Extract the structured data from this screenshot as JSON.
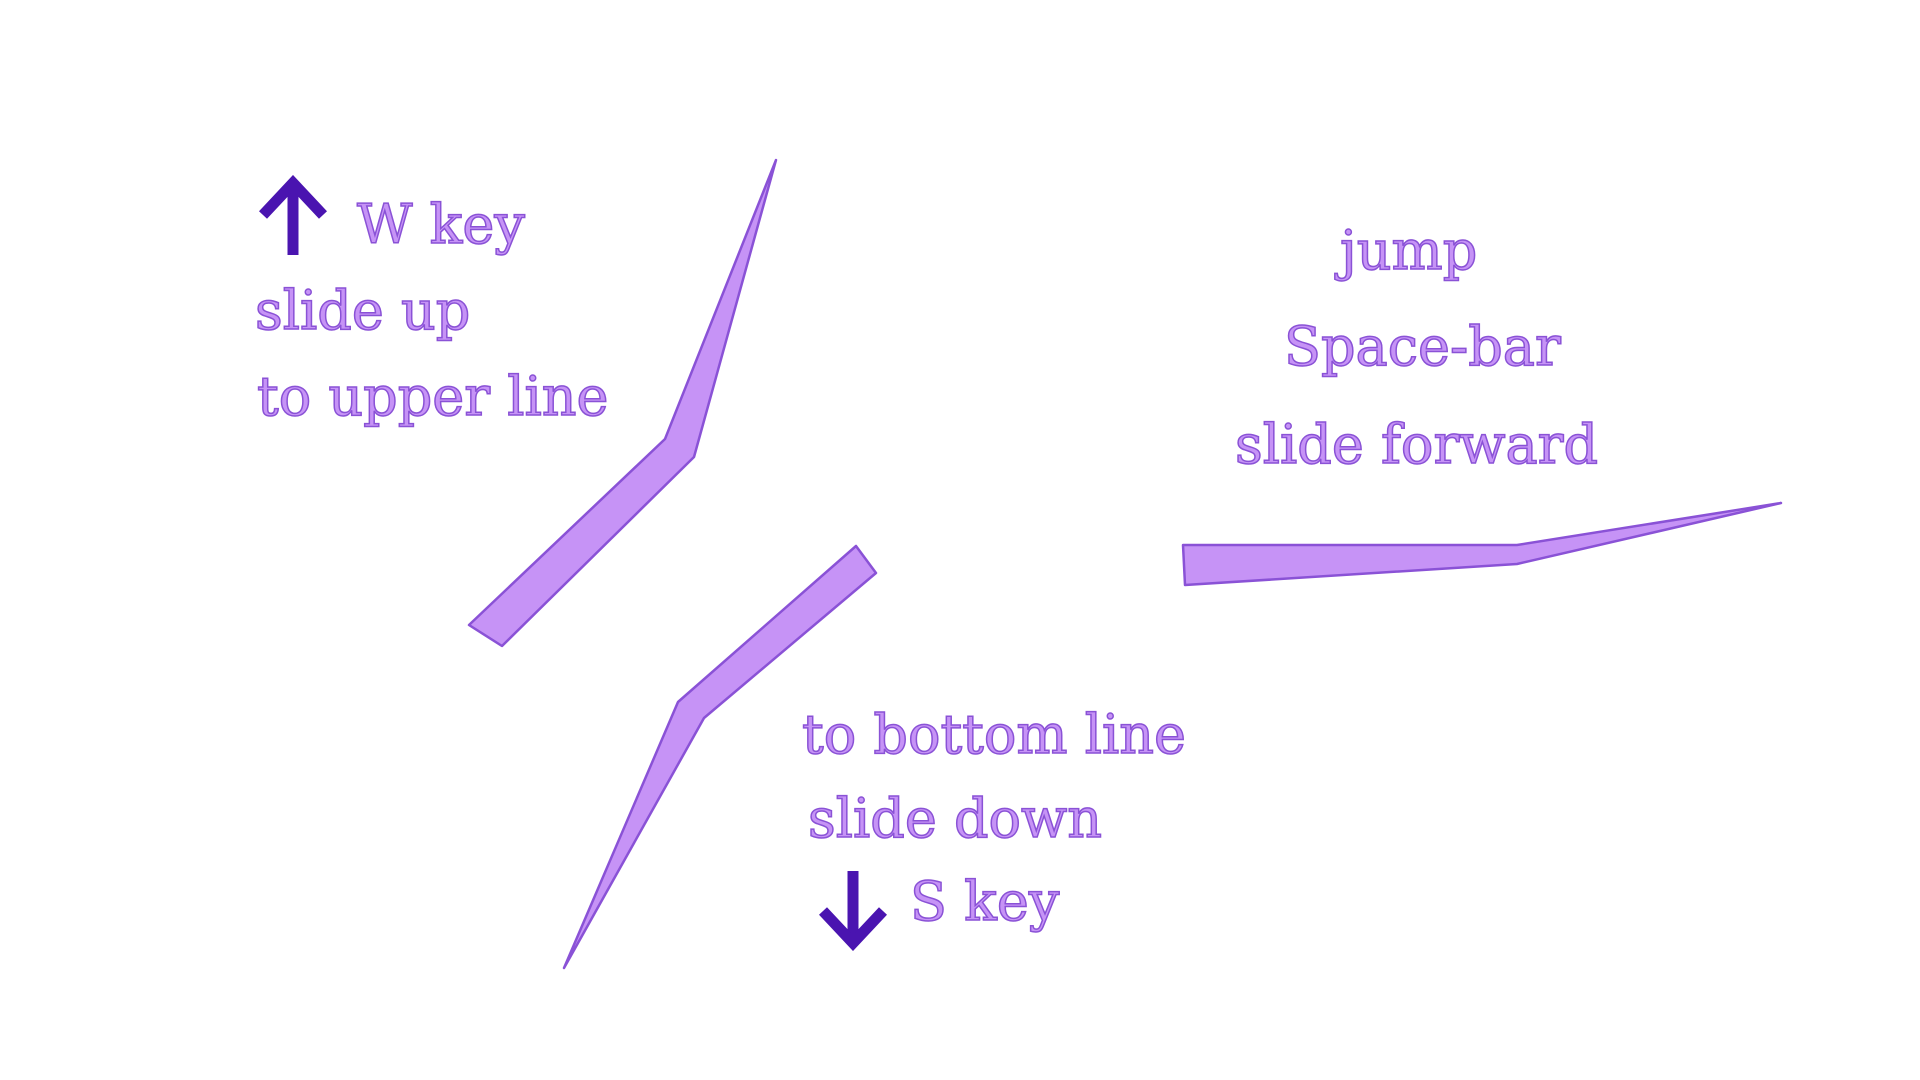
{
  "colors": {
    "stroke_fill": "#c693f6",
    "stroke_outline": "#8a52d6",
    "label_text": "#c693f6",
    "label_outline": "#8a52d6",
    "arrow": "#4a14b0",
    "background": "#ffffff"
  },
  "icons": {
    "up": "arrow-up-icon",
    "down": "arrow-down-icon"
  },
  "up_group": {
    "key": "W key",
    "action": "slide up",
    "target": "to upper line"
  },
  "jump_group": {
    "action": "jump",
    "key": "Space-bar",
    "effect": "slide forward"
  },
  "down_group": {
    "target": "to bottom line",
    "action": "slide down",
    "key": "S key"
  }
}
